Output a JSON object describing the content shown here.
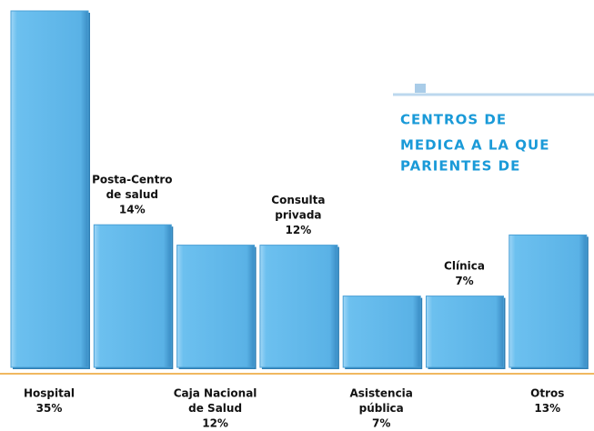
{
  "chart_data": {
    "type": "bar",
    "title_lines": [
      "CENTROS DE",
      "MEDICA A LA QUE",
      "PARIENTES DE"
    ],
    "categories": [
      [
        "Hospital"
      ],
      [
        "Posta-Centro",
        "de salud"
      ],
      [
        "Caja Nacional",
        "de Salud"
      ],
      [
        "Consulta",
        "privada"
      ],
      [
        "Asistencia",
        "pública"
      ],
      [
        "Clínica"
      ],
      [
        "Otros"
      ]
    ],
    "values": [
      35,
      14,
      12,
      12,
      7,
      7,
      13
    ],
    "value_labels": [
      "35%",
      "14%",
      "12%",
      "12%",
      "7%",
      "7%",
      "13%"
    ],
    "color": "#5db6ea"
  }
}
